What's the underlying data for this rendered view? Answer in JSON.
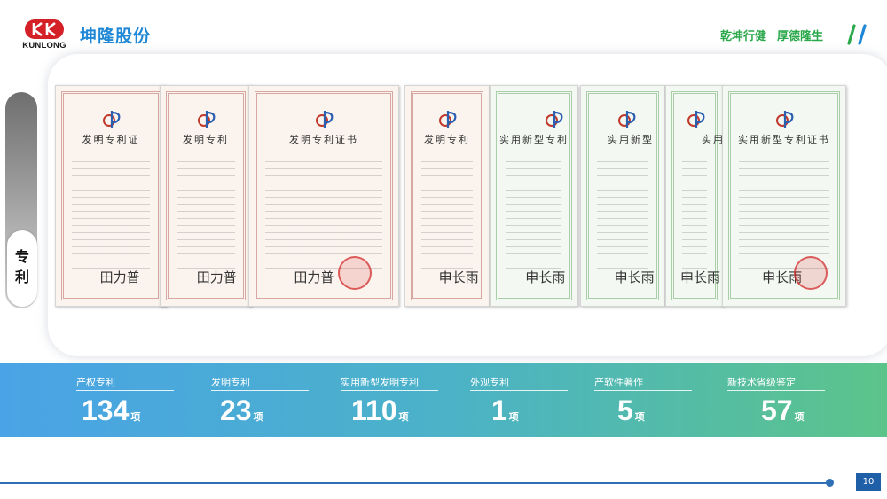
{
  "header": {
    "logo_text": "KUNLONG",
    "brand_name": "坤隆股份",
    "slogan_left": "乾坤行健",
    "slogan_right": "厚德隆生",
    "colors": {
      "brand": "#1e88d6",
      "slogan": "#2aa84a",
      "logo_red": "#d42027"
    }
  },
  "side_tab": {
    "label": "专利"
  },
  "certificates": [
    {
      "type": "invention",
      "title": "发明专利证"
    },
    {
      "type": "invention",
      "title": "发明专利"
    },
    {
      "type": "invention",
      "title": "发明专利证书"
    },
    {
      "type": "invention",
      "title": "发明专利"
    },
    {
      "type": "utility",
      "title": "实用新型专利"
    },
    {
      "type": "utility",
      "title": "实用新型"
    },
    {
      "type": "utility",
      "title": "实用"
    },
    {
      "type": "utility",
      "title": "实用新型专利证书"
    }
  ],
  "stats": [
    {
      "label": "产权专利",
      "value": "134",
      "unit": "项"
    },
    {
      "label": "发明专利",
      "value": "23",
      "unit": "项"
    },
    {
      "label": "实用新型发明专利",
      "value": "110",
      "unit": "项"
    },
    {
      "label": "外观专利",
      "value": "1",
      "unit": "项"
    },
    {
      "label": "产软件著作",
      "value": "5",
      "unit": "项"
    },
    {
      "label": "新技术省级鉴定",
      "value": "57",
      "unit": "项"
    }
  ],
  "footer": {
    "page_number": "10"
  }
}
